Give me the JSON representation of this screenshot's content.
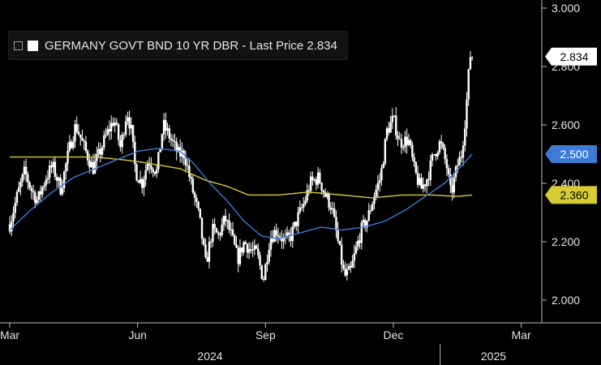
{
  "legend": {
    "series_text": "GERMANY GOVT BND 10 YR DBR - Last Price 2.834"
  },
  "chart_data": {
    "type": "candlestick",
    "title": "",
    "xlabel": "",
    "ylabel": "",
    "ylim": [
      1.85,
      3.0
    ],
    "y_ticks": [
      "3.000",
      "2.800",
      "2.600",
      "2.400",
      "2.200",
      "2.000"
    ],
    "x_ticks": [
      "Mar",
      "Jun",
      "Sep",
      "Dec",
      "Mar"
    ],
    "year_labels": [
      "2024",
      "2025"
    ],
    "grid": false,
    "legend_position": "top-left",
    "colors": {
      "price": "#ffffff",
      "ma_short": "#3d7bd6",
      "ma_long": "#d6cc33",
      "background": "#000000",
      "axis_text": "#e6e6e6"
    },
    "x_months": [
      0,
      1,
      2,
      3,
      4,
      5,
      6,
      7,
      8,
      9,
      10,
      11,
      12
    ],
    "price_anchors": [
      [
        0,
        2.26
      ],
      [
        0.18,
        2.36
      ],
      [
        0.35,
        2.44
      ],
      [
        0.5,
        2.38
      ],
      [
        0.65,
        2.34
      ],
      [
        0.85,
        2.42
      ],
      [
        1.0,
        2.46
      ],
      [
        1.2,
        2.38
      ],
      [
        1.4,
        2.52
      ],
      [
        1.55,
        2.6
      ],
      [
        1.75,
        2.52
      ],
      [
        1.95,
        2.45
      ],
      [
        2.1,
        2.5
      ],
      [
        2.25,
        2.56
      ],
      [
        2.45,
        2.62
      ],
      [
        2.6,
        2.52
      ],
      [
        2.75,
        2.65
      ],
      [
        2.85,
        2.58
      ],
      [
        2.95,
        2.44
      ],
      [
        3.1,
        2.4
      ],
      [
        3.25,
        2.48
      ],
      [
        3.45,
        2.44
      ],
      [
        3.6,
        2.6
      ],
      [
        3.75,
        2.56
      ],
      [
        3.95,
        2.5
      ],
      [
        4.1,
        2.5
      ],
      [
        4.25,
        2.4
      ],
      [
        4.45,
        2.28
      ],
      [
        4.6,
        2.12
      ],
      [
        4.75,
        2.24
      ],
      [
        4.9,
        2.22
      ],
      [
        5.05,
        2.28
      ],
      [
        5.2,
        2.22
      ],
      [
        5.35,
        2.14
      ],
      [
        5.5,
        2.2
      ],
      [
        5.65,
        2.17
      ],
      [
        5.8,
        2.16
      ],
      [
        5.95,
        2.07
      ],
      [
        6.1,
        2.21
      ],
      [
        6.25,
        2.24
      ],
      [
        6.45,
        2.2
      ],
      [
        6.6,
        2.22
      ],
      [
        6.75,
        2.28
      ],
      [
        6.9,
        2.33
      ],
      [
        7.05,
        2.4
      ],
      [
        7.25,
        2.42
      ],
      [
        7.4,
        2.36
      ],
      [
        7.55,
        2.32
      ],
      [
        7.7,
        2.2
      ],
      [
        7.85,
        2.08
      ],
      [
        8.0,
        2.1
      ],
      [
        8.1,
        2.16
      ],
      [
        8.25,
        2.24
      ],
      [
        8.4,
        2.28
      ],
      [
        8.55,
        2.36
      ],
      [
        8.7,
        2.42
      ],
      [
        8.85,
        2.58
      ],
      [
        9.0,
        2.62
      ],
      [
        9.15,
        2.54
      ],
      [
        9.35,
        2.55
      ],
      [
        9.5,
        2.44
      ],
      [
        9.65,
        2.38
      ],
      [
        9.8,
        2.42
      ],
      [
        9.95,
        2.5
      ],
      [
        10.1,
        2.54
      ],
      [
        10.25,
        2.46
      ],
      [
        10.35,
        2.36
      ],
      [
        10.5,
        2.46
      ],
      [
        10.6,
        2.5
      ],
      [
        10.7,
        2.64
      ],
      [
        10.8,
        2.84
      ],
      [
        10.85,
        2.834
      ]
    ],
    "ma_short_anchors": [
      [
        0,
        2.24
      ],
      [
        0.5,
        2.31
      ],
      [
        1.0,
        2.37
      ],
      [
        1.5,
        2.42
      ],
      [
        2.0,
        2.45
      ],
      [
        2.5,
        2.48
      ],
      [
        3.0,
        2.51
      ],
      [
        3.5,
        2.52
      ],
      [
        4.0,
        2.51
      ],
      [
        4.3,
        2.47
      ],
      [
        4.7,
        2.4
      ],
      [
        5.1,
        2.34
      ],
      [
        5.5,
        2.27
      ],
      [
        5.9,
        2.22
      ],
      [
        6.3,
        2.21
      ],
      [
        6.8,
        2.23
      ],
      [
        7.3,
        2.25
      ],
      [
        7.8,
        2.24
      ],
      [
        8.3,
        2.25
      ],
      [
        8.8,
        2.27
      ],
      [
        9.3,
        2.31
      ],
      [
        9.8,
        2.36
      ],
      [
        10.2,
        2.4
      ],
      [
        10.6,
        2.46
      ],
      [
        10.85,
        2.5
      ]
    ],
    "ma_long_anchors": [
      [
        0,
        2.49
      ],
      [
        1.0,
        2.49
      ],
      [
        2.0,
        2.49
      ],
      [
        2.7,
        2.48
      ],
      [
        3.2,
        2.47
      ],
      [
        4.0,
        2.45
      ],
      [
        4.6,
        2.41
      ],
      [
        5.1,
        2.39
      ],
      [
        5.6,
        2.36
      ],
      [
        6.3,
        2.36
      ],
      [
        7.0,
        2.37
      ],
      [
        7.8,
        2.36
      ],
      [
        8.5,
        2.35
      ],
      [
        9.2,
        2.36
      ],
      [
        9.9,
        2.36
      ],
      [
        10.5,
        2.355
      ],
      [
        10.85,
        2.36
      ]
    ],
    "price_labels": [
      {
        "name": "last-price-label",
        "text": "2.834",
        "value": 2.834,
        "fill": "#ffffff",
        "text_color": "#000000"
      },
      {
        "name": "ma-short-label",
        "text": "2.500",
        "value": 2.5,
        "fill": "#3d7bd6",
        "text_color": "#ffffff"
      },
      {
        "name": "ma-long-label",
        "text": "2.360",
        "value": 2.36,
        "fill": "#d6cc33",
        "text_color": "#000000"
      }
    ]
  }
}
